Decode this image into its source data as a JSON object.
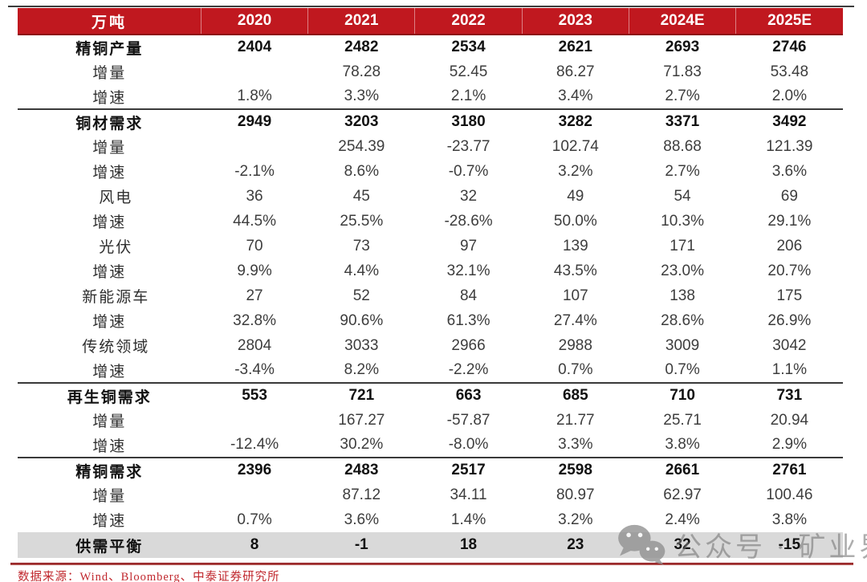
{
  "chart_data": {
    "type": "table",
    "unit_label": "万吨",
    "columns": [
      "2020",
      "2021",
      "2022",
      "2023",
      "2024E",
      "2025E"
    ],
    "rows": [
      {
        "label": "精铜产量",
        "type": "section",
        "divider_above": false,
        "values": [
          "2404",
          "2482",
          "2534",
          "2621",
          "2693",
          "2746"
        ]
      },
      {
        "label": "增量",
        "type": "sub",
        "divider_above": false,
        "values": [
          "",
          "78.28",
          "52.45",
          "86.27",
          "71.83",
          "53.48"
        ]
      },
      {
        "label": "增速",
        "type": "sub",
        "divider_above": false,
        "values": [
          "1.8%",
          "3.3%",
          "2.1%",
          "3.4%",
          "2.7%",
          "2.0%"
        ]
      },
      {
        "label": "铜材需求",
        "type": "section",
        "divider_above": true,
        "values": [
          "2949",
          "3203",
          "3180",
          "3282",
          "3371",
          "3492"
        ]
      },
      {
        "label": "增量",
        "type": "sub",
        "divider_above": false,
        "values": [
          "",
          "254.39",
          "-23.77",
          "102.74",
          "88.68",
          "121.39"
        ]
      },
      {
        "label": "增速",
        "type": "sub",
        "divider_above": false,
        "values": [
          "-2.1%",
          "8.6%",
          "-0.7%",
          "3.2%",
          "2.7%",
          "3.6%"
        ]
      },
      {
        "label": "风电",
        "type": "category",
        "divider_above": false,
        "values": [
          "36",
          "45",
          "32",
          "49",
          "54",
          "69"
        ]
      },
      {
        "label": "增速",
        "type": "sub",
        "divider_above": false,
        "values": [
          "44.5%",
          "25.5%",
          "-28.6%",
          "50.0%",
          "10.3%",
          "29.1%"
        ]
      },
      {
        "label": "光伏",
        "type": "category",
        "divider_above": false,
        "values": [
          "70",
          "73",
          "97",
          "139",
          "171",
          "206"
        ]
      },
      {
        "label": "增速",
        "type": "sub",
        "divider_above": false,
        "values": [
          "9.9%",
          "4.4%",
          "32.1%",
          "43.5%",
          "23.0%",
          "20.7%"
        ]
      },
      {
        "label": "新能源车",
        "type": "category",
        "divider_above": false,
        "values": [
          "27",
          "52",
          "84",
          "107",
          "138",
          "175"
        ]
      },
      {
        "label": "增速",
        "type": "sub",
        "divider_above": false,
        "values": [
          "32.8%",
          "90.6%",
          "61.3%",
          "27.4%",
          "28.6%",
          "26.9%"
        ]
      },
      {
        "label": "传统领域",
        "type": "category",
        "divider_above": false,
        "values": [
          "2804",
          "3033",
          "2966",
          "2988",
          "3009",
          "3042"
        ]
      },
      {
        "label": "增速",
        "type": "sub",
        "divider_above": false,
        "values": [
          "-3.4%",
          "8.2%",
          "-2.2%",
          "0.7%",
          "0.7%",
          "1.1%"
        ]
      },
      {
        "label": "再生铜需求",
        "type": "section",
        "divider_above": true,
        "values": [
          "553",
          "721",
          "663",
          "685",
          "710",
          "731"
        ]
      },
      {
        "label": "增量",
        "type": "sub",
        "divider_above": false,
        "values": [
          "",
          "167.27",
          "-57.87",
          "21.77",
          "25.71",
          "20.94"
        ]
      },
      {
        "label": "增速",
        "type": "sub",
        "divider_above": false,
        "values": [
          "-12.4%",
          "30.2%",
          "-8.0%",
          "3.3%",
          "3.8%",
          "2.9%"
        ]
      },
      {
        "label": "精铜需求",
        "type": "section",
        "divider_above": true,
        "values": [
          "2396",
          "2483",
          "2517",
          "2598",
          "2661",
          "2761"
        ]
      },
      {
        "label": "增量",
        "type": "sub",
        "divider_above": false,
        "values": [
          "",
          "87.12",
          "34.11",
          "80.97",
          "62.97",
          "100.46"
        ]
      },
      {
        "label": "增速",
        "type": "sub",
        "divider_above": false,
        "values": [
          "0.7%",
          "3.6%",
          "1.4%",
          "3.2%",
          "2.4%",
          "3.8%"
        ]
      },
      {
        "label": "供需平衡",
        "type": "balance",
        "divider_above": false,
        "values": [
          "8",
          "-1",
          "18",
          "23",
          "32",
          "-15"
        ]
      }
    ]
  },
  "footer": {
    "source_text": "数据来源：Wind、Bloomberg、中泰证券研究所"
  },
  "watermark": {
    "icon": "wechat-icon",
    "text": "公众号 · 矿业界"
  },
  "colors": {
    "header_bg": "#c0181f",
    "header_border": "#8d1016",
    "balance_row_bg": "#d9d9d9",
    "divider": "#3a3a3a",
    "bottom_line": "#a94442",
    "source_text": "#c0272d"
  }
}
